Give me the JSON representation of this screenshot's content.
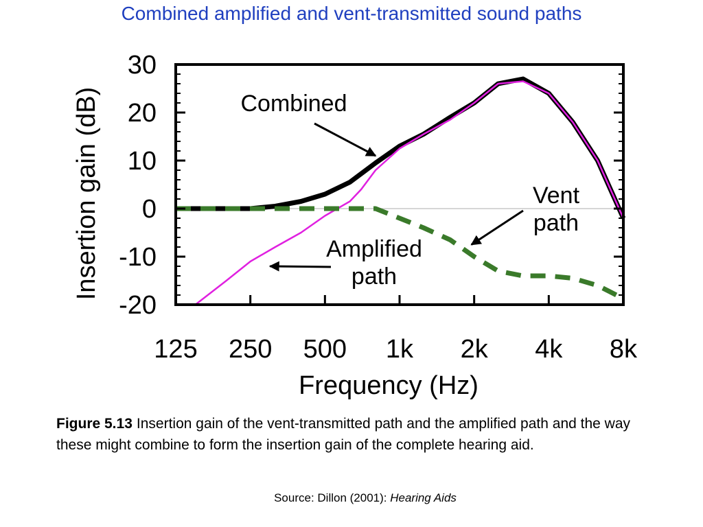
{
  "title": "Combined amplified and vent-transmitted sound paths",
  "caption": {
    "label": "Figure 5.13",
    "text": "Insertion gain of the vent-transmitted path and the amplified path and the way these might combine to form the insertion gain of the complete hearing aid."
  },
  "source": {
    "prefix": "Source:  Dillon (2001): ",
    "book": "Hearing Aids"
  },
  "chart_data": {
    "type": "line",
    "xlabel": "Frequency (Hz)",
    "ylabel": "Insertion gain (dB)",
    "x_scale": "log2",
    "xlim": [
      125,
      8000
    ],
    "ylim": [
      -20,
      30
    ],
    "x_ticks": [
      125,
      250,
      500,
      1000,
      2000,
      4000,
      8000
    ],
    "x_tick_labels": [
      "125",
      "250",
      "500",
      "1k",
      "2k",
      "4k",
      "8k"
    ],
    "y_ticks": [
      30,
      20,
      10,
      0,
      -10,
      -20
    ],
    "y_tick_labels": [
      "30",
      "20",
      "10",
      "0",
      "-10",
      "-20"
    ],
    "grid": false,
    "reference_line_y": 0,
    "series": [
      {
        "name": "Combined",
        "color": "#000000",
        "style": "thick-solid",
        "points": [
          [
            125,
            0
          ],
          [
            250,
            0
          ],
          [
            315,
            0.5
          ],
          [
            400,
            1.5
          ],
          [
            500,
            3
          ],
          [
            630,
            5.5
          ],
          [
            800,
            9.5
          ],
          [
            1000,
            13
          ],
          [
            1250,
            15.5
          ],
          [
            1600,
            19
          ],
          [
            2000,
            22
          ],
          [
            2500,
            26
          ],
          [
            3150,
            27
          ],
          [
            4000,
            24
          ],
          [
            5000,
            18
          ],
          [
            6300,
            10
          ],
          [
            8000,
            -2
          ]
        ]
      },
      {
        "name": "Amplified path",
        "color": "#e020e0",
        "style": "thin-solid",
        "points": [
          [
            150,
            -20
          ],
          [
            200,
            -15
          ],
          [
            250,
            -11
          ],
          [
            315,
            -8
          ],
          [
            400,
            -5
          ],
          [
            500,
            -1.5
          ],
          [
            630,
            1.5
          ],
          [
            700,
            4
          ],
          [
            800,
            8
          ],
          [
            1000,
            12.5
          ],
          [
            1250,
            15.5
          ],
          [
            1600,
            18.5
          ],
          [
            2000,
            22
          ],
          [
            2500,
            26
          ],
          [
            3150,
            26.5
          ],
          [
            4000,
            24
          ],
          [
            5000,
            18
          ],
          [
            6300,
            10
          ],
          [
            8000,
            -2
          ]
        ]
      },
      {
        "name": "Vent path",
        "color": "#3a7a2a",
        "style": "dashed",
        "points": [
          [
            125,
            0
          ],
          [
            250,
            0
          ],
          [
            400,
            0
          ],
          [
            800,
            0
          ],
          [
            1000,
            -2
          ],
          [
            1250,
            -4
          ],
          [
            1600,
            -6.5
          ],
          [
            2000,
            -10
          ],
          [
            2500,
            -13
          ],
          [
            3150,
            -14
          ],
          [
            4000,
            -14
          ],
          [
            5000,
            -14.5
          ],
          [
            6300,
            -16
          ],
          [
            7500,
            -18
          ]
        ]
      }
    ],
    "annotations": [
      {
        "lines": [
          "Combined"
        ],
        "target": [
          800,
          11
        ]
      },
      {
        "lines": [
          "Vent",
          "path"
        ],
        "target": [
          1950,
          -7.5
        ]
      },
      {
        "lines": [
          "Amplified",
          "path"
        ],
        "target": [
          300,
          -12
        ]
      }
    ]
  }
}
